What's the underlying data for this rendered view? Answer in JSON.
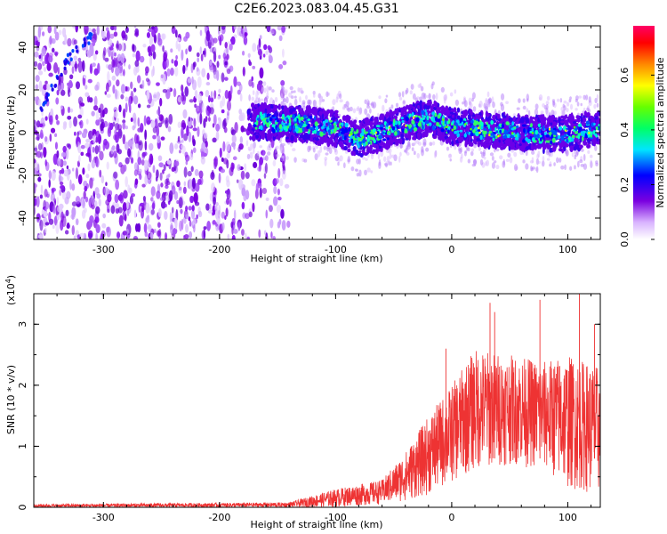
{
  "title": "C2E6.2023.083.04.45.G31",
  "chart_data": [
    {
      "type": "heatmap",
      "xlabel": "Height of straight line (km)",
      "ylabel": "Frequency (Hz)",
      "xlim": [
        -360,
        128
      ],
      "ylim": [
        -50,
        50
      ],
      "xticks": [
        -300,
        -200,
        -100,
        0,
        100
      ],
      "yticks": [
        -40,
        -20,
        0,
        20,
        40
      ],
      "colorbar": {
        "label": "Normalized spectral amplitude",
        "range": [
          0.0,
          0.78
        ],
        "ticks": [
          0.0,
          0.2,
          0.4,
          0.6
        ],
        "tick_labels": [
          "0.0",
          "0.2",
          "0.4",
          "0.6"
        ],
        "colors": [
          "#ffffff",
          "#7a00e0",
          "#0000ff",
          "#00ffcc",
          "#00ff00",
          "#ffff00",
          "#ff6600",
          "#ff0000",
          "#ff0066"
        ]
      },
      "features": {
        "noise_region_x": [
          -360,
          -140
        ],
        "signal_band_center_hz": [
          {
            "x": -170,
            "f": 5
          },
          {
            "x": -130,
            "f": 4
          },
          {
            "x": -100,
            "f": 2
          },
          {
            "x": -80,
            "f": -3
          },
          {
            "x": -60,
            "f": 0
          },
          {
            "x": -40,
            "f": 4
          },
          {
            "x": -20,
            "f": 7
          },
          {
            "x": 0,
            "f": 3
          },
          {
            "x": 30,
            "f": 1
          },
          {
            "x": 60,
            "f": 0
          },
          {
            "x": 90,
            "f": -1
          },
          {
            "x": 128,
            "f": 2
          }
        ],
        "diagonal_streak": [
          {
            "x": -355,
            "f": 10
          },
          {
            "x": -330,
            "f": 35
          },
          {
            "x": -310,
            "f": 45
          }
        ]
      }
    },
    {
      "type": "line",
      "xlabel": "Height of straight line (km)",
      "ylabel": "SNR (10 * v/v)",
      "y_multiplier_label": "(x10",
      "y_multiplier_exp": "4",
      "y_multiplier_close": ")",
      "xlim": [
        -360,
        128
      ],
      "ylim": [
        0,
        3.5
      ],
      "xticks": [
        -300,
        -200,
        -100,
        0,
        100
      ],
      "yticks": [
        0,
        1,
        2,
        3
      ],
      "color": "#ee3333",
      "envelope": [
        {
          "x": -360,
          "lo": 0.0,
          "hi": 0.05
        },
        {
          "x": -140,
          "lo": 0.0,
          "hi": 0.08
        },
        {
          "x": -100,
          "lo": 0.0,
          "hi": 0.3
        },
        {
          "x": -60,
          "lo": 0.05,
          "hi": 0.45
        },
        {
          "x": -40,
          "lo": 0.1,
          "hi": 0.9
        },
        {
          "x": -20,
          "lo": 0.2,
          "hi": 1.5
        },
        {
          "x": 0,
          "lo": 0.4,
          "hi": 2.0
        },
        {
          "x": 20,
          "lo": 0.6,
          "hi": 2.6
        },
        {
          "x": 50,
          "lo": 0.7,
          "hi": 2.5
        },
        {
          "x": 80,
          "lo": 0.6,
          "hi": 2.4
        },
        {
          "x": 100,
          "lo": 0.3,
          "hi": 2.5
        },
        {
          "x": 128,
          "lo": 0.2,
          "hi": 2.3
        }
      ],
      "spikes": [
        {
          "x": 33,
          "y": 3.35
        },
        {
          "x": 37,
          "y": 3.2
        },
        {
          "x": 76,
          "y": 3.4
        },
        {
          "x": 110,
          "y": 3.5
        },
        {
          "x": 123,
          "y": 3.0
        },
        {
          "x": -5,
          "y": 2.6
        }
      ]
    }
  ]
}
